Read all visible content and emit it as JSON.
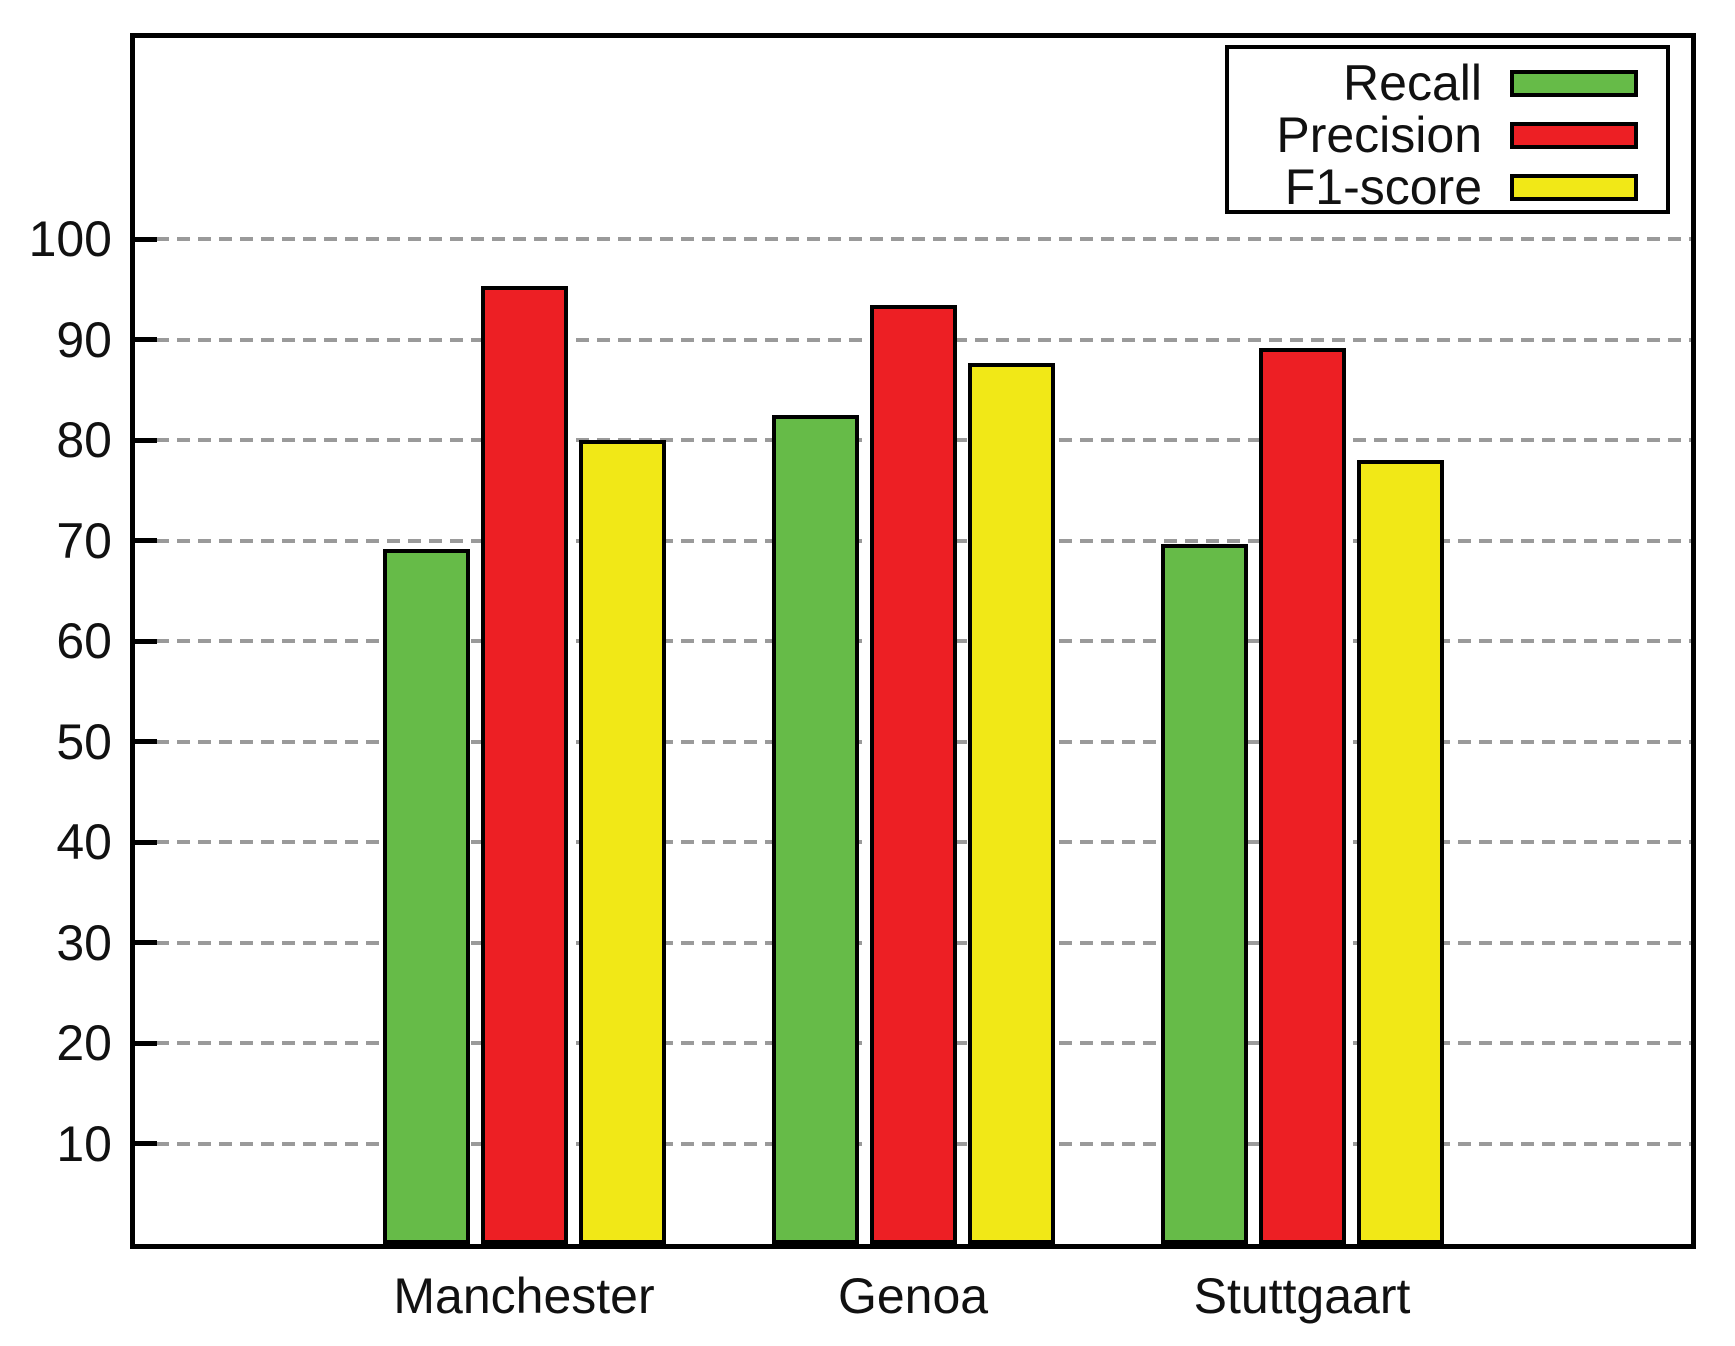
{
  "chart_data": {
    "type": "bar",
    "title": "",
    "xlabel": "",
    "ylabel": "",
    "categories": [
      "Manchester",
      "Genoa",
      "Stuttgaart"
    ],
    "series": [
      {
        "name": "Recall",
        "color": "#66BB48",
        "values": [
          69.2,
          82.5,
          69.7
        ]
      },
      {
        "name": "Precision",
        "color": "#ED1F24",
        "values": [
          95.3,
          93.4,
          89.2
        ]
      },
      {
        "name": "F1-score",
        "color": "#F1E817",
        "values": [
          80.0,
          87.7,
          78.0
        ]
      }
    ],
    "ylim": [
      0,
      120
    ],
    "yticks": [
      10,
      20,
      30,
      40,
      50,
      60,
      70,
      80,
      90,
      100
    ],
    "grid": "horizontal-dashed",
    "legend_position": "top-right"
  },
  "colors": {
    "grid": "#9A9A9A",
    "axis": "#000000",
    "background": "#FFFFFF"
  }
}
